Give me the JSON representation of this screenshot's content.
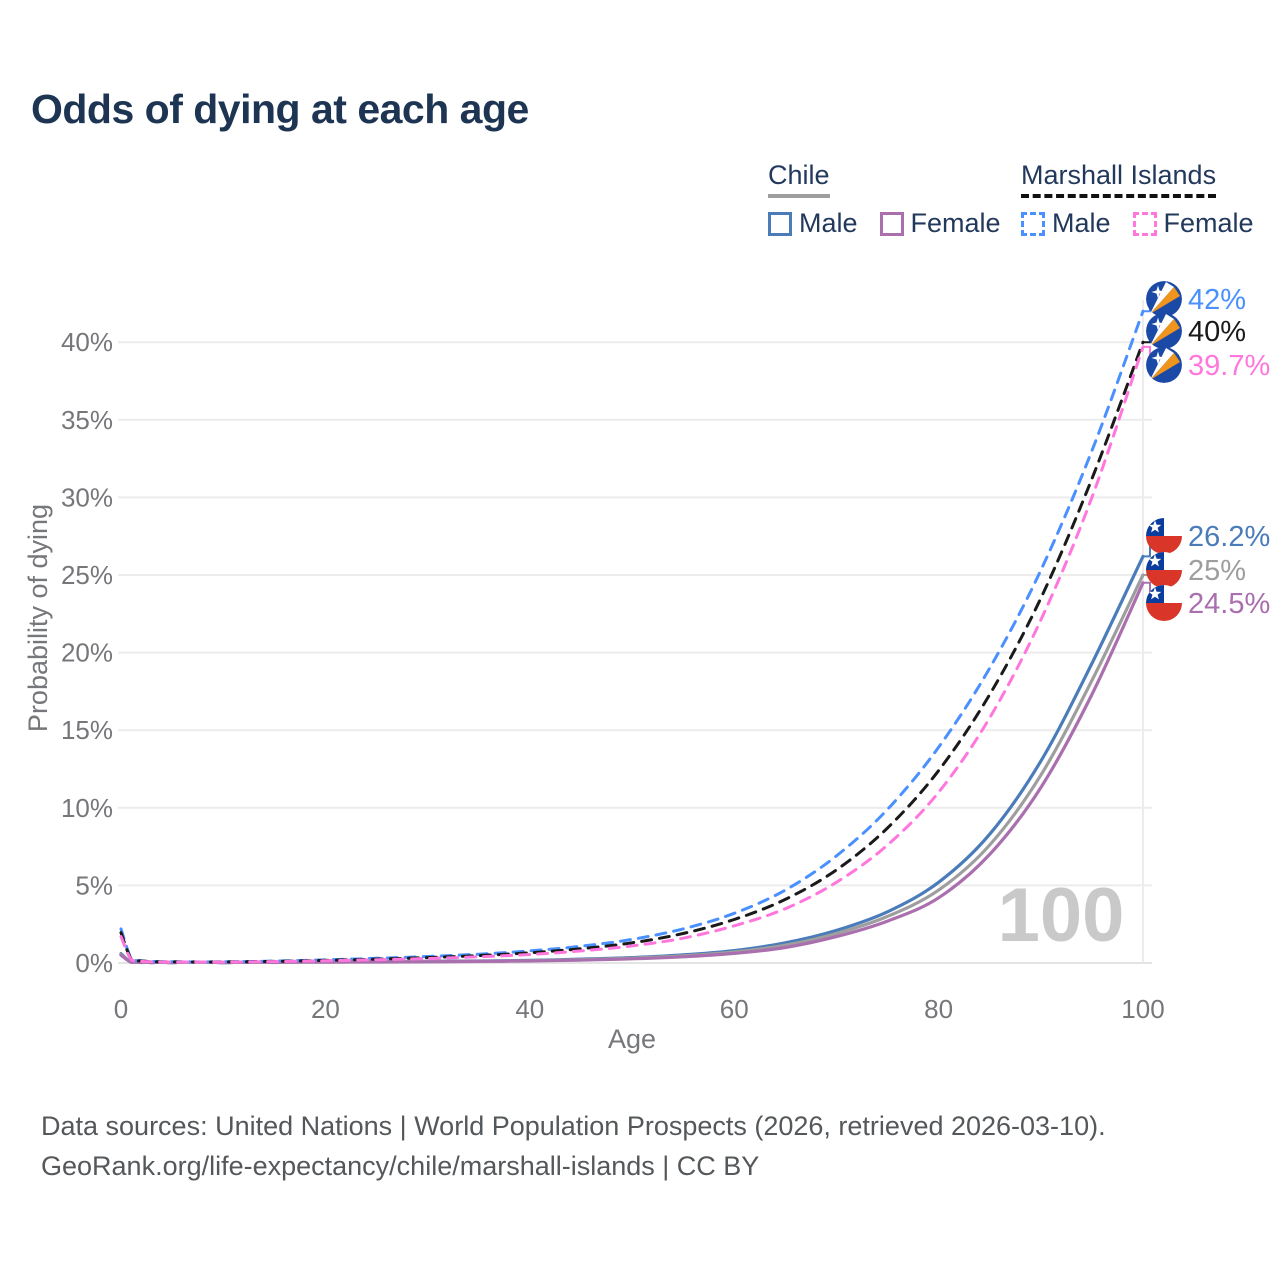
{
  "title": "Odds of dying at each age",
  "legend": {
    "groups": [
      {
        "label": "Chile",
        "line_style": "solid",
        "underline_color": "#9e9e9e",
        "items": [
          {
            "label": "Male",
            "color": "#4a7cba"
          },
          {
            "label": "Female",
            "color": "#aa6fae"
          }
        ]
      },
      {
        "label": "Marshall Islands",
        "line_style": "dashed",
        "underline_color": "#111111",
        "items": [
          {
            "label": "Male",
            "color": "#4a90ff"
          },
          {
            "label": "Female",
            "color": "#ff77dd"
          }
        ]
      }
    ]
  },
  "chart_data": {
    "type": "line",
    "title": "Odds of dying at each age",
    "xlabel": "Age",
    "ylabel": "Probability of dying",
    "x_ticks": [
      0,
      20,
      40,
      60,
      80,
      100
    ],
    "y_tick_labels": [
      "0%",
      "5%",
      "10%",
      "15%",
      "20%",
      "25%",
      "30%",
      "35%",
      "40%"
    ],
    "y_tick_values": [
      0,
      5,
      10,
      15,
      20,
      25,
      30,
      35,
      40
    ],
    "xlim": [
      0,
      100
    ],
    "ylim_percent": [
      0,
      43
    ],
    "grid": "horizontal",
    "ages": [
      0,
      1,
      2,
      3,
      5,
      10,
      15,
      20,
      25,
      30,
      35,
      40,
      45,
      50,
      55,
      60,
      65,
      70,
      75,
      80,
      85,
      90,
      95,
      100
    ],
    "series": [
      {
        "id": "chile-male",
        "country": "Chile",
        "sex": "Male",
        "color": "#4a7cba",
        "line_style": "solid",
        "flag": "chile",
        "end_label": "26.2%",
        "end_value_percent": 26.2,
        "values": [
          0.6,
          0.06,
          0.04,
          0.03,
          0.02,
          0.02,
          0.05,
          0.08,
          0.1,
          0.11,
          0.13,
          0.17,
          0.25,
          0.35,
          0.52,
          0.8,
          1.3,
          2.1,
          3.3,
          5.2,
          8.3,
          13.0,
          19.3,
          26.2
        ]
      },
      {
        "id": "chile-combined",
        "country": "Chile",
        "sex": "Both sexes",
        "color": "#9e9e9e",
        "line_style": "solid",
        "flag": "chile",
        "end_label": "25%",
        "end_value_percent": 25.0,
        "values": [
          0.55,
          0.05,
          0.035,
          0.027,
          0.02,
          0.02,
          0.04,
          0.065,
          0.08,
          0.095,
          0.115,
          0.15,
          0.22,
          0.31,
          0.46,
          0.71,
          1.15,
          1.9,
          3.0,
          4.7,
          7.6,
          12.1,
          18.2,
          25.0
        ]
      },
      {
        "id": "chile-female",
        "country": "Chile",
        "sex": "Female",
        "color": "#aa6fae",
        "line_style": "solid",
        "flag": "chile",
        "end_label": "24.5%",
        "end_value_percent": 24.5,
        "values": [
          0.5,
          0.045,
          0.03,
          0.025,
          0.018,
          0.018,
          0.032,
          0.05,
          0.062,
          0.08,
          0.1,
          0.13,
          0.19,
          0.27,
          0.4,
          0.62,
          1.0,
          1.7,
          2.7,
          4.2,
          7.0,
          11.3,
          17.3,
          24.5
        ]
      },
      {
        "id": "mi-male",
        "country": "Marshall Islands",
        "sex": "Male",
        "color": "#4a90ff",
        "line_style": "dashed",
        "flag": "marshall-islands",
        "end_label": "42%",
        "end_value_percent": 42.0,
        "values": [
          2.2,
          0.3,
          0.15,
          0.1,
          0.08,
          0.08,
          0.12,
          0.2,
          0.3,
          0.42,
          0.57,
          0.78,
          1.08,
          1.52,
          2.2,
          3.2,
          4.7,
          6.9,
          9.9,
          13.9,
          19.0,
          25.3,
          33.0,
          42.0
        ]
      },
      {
        "id": "mi-combined",
        "country": "Marshall Islands",
        "sex": "Both sexes",
        "color": "#1a1a1a",
        "line_style": "dashed",
        "flag": "marshall-islands",
        "end_label": "40%",
        "end_value_percent": 40.0,
        "values": [
          1.95,
          0.26,
          0.13,
          0.09,
          0.07,
          0.07,
          0.1,
          0.17,
          0.25,
          0.35,
          0.48,
          0.66,
          0.92,
          1.3,
          1.9,
          2.8,
          4.1,
          6.0,
          8.7,
          12.4,
          17.3,
          23.5,
          31.2,
          40.0
        ]
      },
      {
        "id": "mi-female",
        "country": "Marshall Islands",
        "sex": "Female",
        "color": "#ff77dd",
        "line_style": "dashed",
        "flag": "marshall-islands",
        "end_label": "39.7%",
        "end_value_percent": 39.7,
        "values": [
          1.7,
          0.22,
          0.11,
          0.08,
          0.06,
          0.06,
          0.09,
          0.14,
          0.21,
          0.29,
          0.4,
          0.55,
          0.78,
          1.1,
          1.6,
          2.4,
          3.5,
          5.2,
          7.6,
          11.0,
          15.8,
          22.1,
          30.0,
          39.7
        ]
      }
    ]
  },
  "watermark": "100",
  "footer": {
    "line1": "Data sources: United Nations | World Population Prospects (2026, retrieved 2026-03-10).",
    "line2": "GeoRank.org/life-expectancy/chile/marshall-islands | CC BY"
  }
}
